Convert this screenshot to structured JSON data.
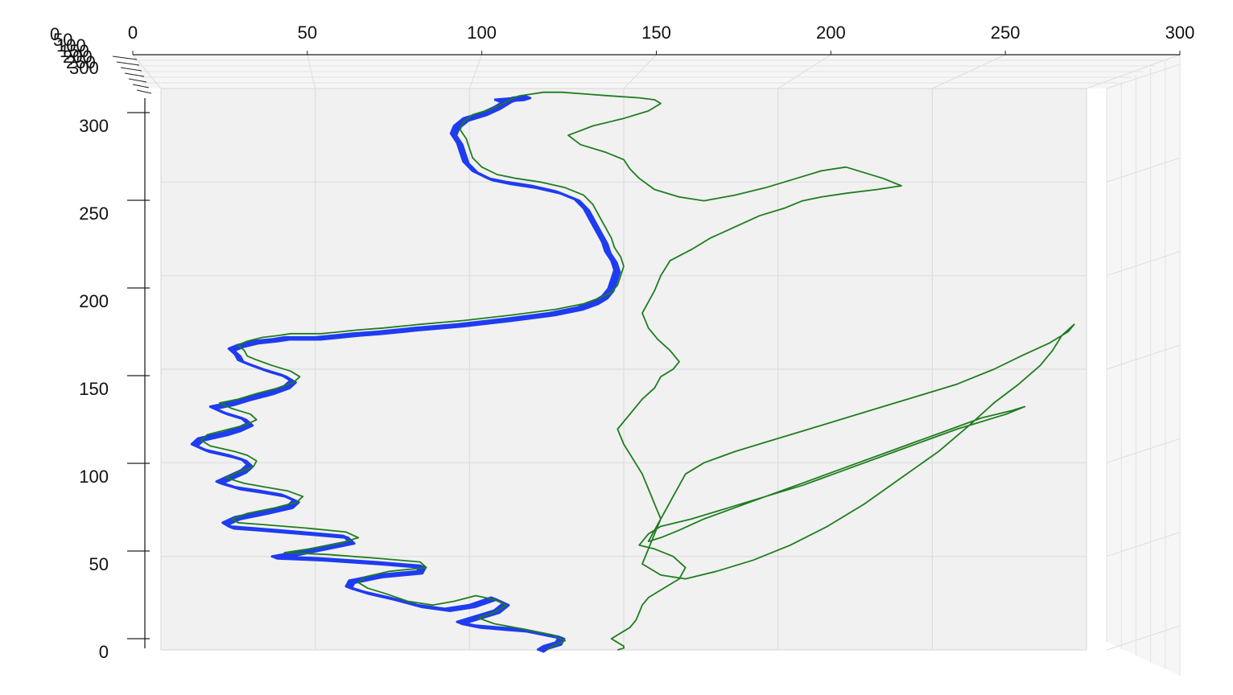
{
  "chart_data": {
    "type": "line",
    "view": "3d-front",
    "title": "",
    "xlabel": "",
    "ylabel": "",
    "zlabel": "",
    "x_ticks": [
      "0",
      "50",
      "100",
      "150",
      "200",
      "250",
      "300"
    ],
    "y_ticks": [
      "0",
      "50",
      "100",
      "150",
      "200",
      "250",
      "300"
    ],
    "z_ticks": [
      "0",
      "50",
      "100",
      "150",
      "200",
      "250",
      "300"
    ],
    "xlim": [
      0,
      300
    ],
    "ylim": [
      0,
      300
    ],
    "grid": true,
    "background": "#f1f1f1",
    "series": [
      {
        "color": "#1f3cf0",
        "x": [
          122,
          124,
          128,
          129,
          117,
          102,
          96,
          102,
          108,
          111,
          107,
          100,
          92,
          83,
          74,
          66,
          60,
          61,
          70,
          83,
          84,
          69,
          51,
          36,
          43,
          52,
          61,
          59,
          45,
          30,
          22,
          20,
          24,
          33,
          41,
          43,
          39,
          32,
          24,
          18,
          22,
          26,
          28,
          26,
          22,
          14,
          10,
          12,
          20,
          24,
          28,
          26,
          20,
          16,
          22,
          28,
          35,
          40,
          42,
          39,
          33,
          28,
          25,
          24,
          22,
          25,
          30,
          36,
          40,
          44,
          50,
          56,
          62,
          70,
          82,
          96,
          112,
          126,
          135,
          140,
          143,
          145,
          146,
          147,
          146,
          144,
          143,
          141,
          139,
          137,
          134,
          128,
          120,
          112,
          106,
          101,
          98,
          97,
          96,
          94,
          95,
          98,
          104,
          108,
          110,
          112,
          114,
          118,
          116,
          108
        ],
        "y": [
          0,
          2,
          4,
          7,
          11,
          13,
          15,
          18,
          21,
          25,
          28,
          24,
          22,
          24,
          28,
          31,
          34,
          37,
          40,
          42,
          45,
          47,
          49,
          50,
          52,
          55,
          58,
          61,
          63,
          65,
          66,
          68,
          71,
          74,
          77,
          80,
          83,
          85,
          87,
          90,
          93,
          96,
          99,
          102,
          104,
          107,
          110,
          113,
          116,
          118,
          121,
          124,
          127,
          130,
          132,
          135,
          138,
          141,
          144,
          147,
          150,
          153,
          155,
          158,
          161,
          163,
          165,
          166,
          167,
          167,
          167,
          168,
          169,
          170,
          172,
          174,
          177,
          180,
          183,
          186,
          189,
          193,
          198,
          203,
          208,
          213,
          218,
          224,
          230,
          236,
          241,
          245,
          248,
          250,
          252,
          256,
          261,
          266,
          271,
          276,
          280,
          284,
          287,
          290,
          292,
          294,
          295,
          296,
          295,
          294
        ]
      },
      {
        "color": "#1e7d1e",
        "x": [
          125,
          128,
          131,
          127,
          118,
          108,
          103,
          108,
          112,
          108,
          102,
          95,
          88,
          80,
          73,
          67,
          64,
          66,
          74,
          86,
          84,
          70,
          54,
          40,
          48,
          58,
          64,
          60,
          48,
          33,
          25,
          23,
          28,
          37,
          44,
          46,
          41,
          34,
          27,
          21,
          25,
          30,
          31,
          28,
          24,
          16,
          13,
          15,
          22,
          27,
          31,
          29,
          23,
          19,
          25,
          31,
          38,
          43,
          45,
          42,
          36,
          31,
          28,
          27,
          25,
          28,
          33,
          38,
          42,
          46,
          52,
          58,
          64,
          72,
          84,
          98,
          114,
          128,
          137,
          142,
          146,
          148,
          149,
          150,
          149,
          147,
          146,
          144,
          142,
          140,
          137,
          131,
          123,
          115,
          109,
          104,
          101,
          100,
          99,
          97,
          98,
          101,
          107,
          111,
          113,
          116,
          120,
          124,
          130,
          138,
          146,
          155,
          160,
          162,
          158,
          150,
          140,
          132,
          136,
          144,
          150,
          152,
          155,
          160,
          168,
          176,
          186,
          196,
          206,
          214,
          222,
          228,
          234,
          240,
          232,
          222,
          214,
          208,
          202,
          194,
          186,
          178,
          172,
          165,
          162,
          160,
          158,
          156,
          158,
          161,
          165,
          168,
          166,
          162,
          160,
          156,
          152,
          148,
          150,
          153,
          156,
          158,
          160,
          162,
          160,
          158,
          156,
          162,
          170,
          180,
          192,
          204,
          216,
          228,
          240,
          252,
          262,
          270,
          278,
          285,
          289,
          292,
          296,
          294,
          288,
          280,
          270,
          258,
          246,
          234,
          222,
          210,
          198,
          186,
          176,
          170,
          168,
          166,
          164,
          162,
          160,
          158,
          162,
          168,
          176,
          186,
          196,
          206,
          216,
          226,
          236,
          246,
          256,
          266,
          276,
          280,
          274,
          266,
          258,
          248,
          238,
          228,
          218,
          208,
          196,
          184,
          172,
          162,
          158,
          156,
          155,
          160,
          166,
          170,
          168,
          162,
          158,
          156,
          155,
          154,
          152,
          150,
          148,
          147,
          146,
          147,
          148,
          149,
          150,
          150,
          148
        ],
        "y": [
          0,
          3,
          5,
          8,
          11,
          14,
          17,
          20,
          24,
          27,
          29,
          26,
          24,
          26,
          30,
          33,
          36,
          39,
          42,
          44,
          47,
          49,
          51,
          52,
          54,
          57,
          60,
          63,
          65,
          67,
          68,
          70,
          73,
          76,
          79,
          82,
          85,
          87,
          89,
          92,
          95,
          98,
          101,
          104,
          106,
          109,
          112,
          115,
          118,
          120,
          123,
          126,
          129,
          132,
          134,
          137,
          140,
          143,
          146,
          149,
          152,
          155,
          157,
          160,
          163,
          165,
          167,
          168,
          169,
          169,
          169,
          170,
          171,
          172,
          174,
          176,
          179,
          182,
          185,
          188,
          191,
          195,
          200,
          205,
          210,
          215,
          220,
          226,
          232,
          238,
          243,
          247,
          250,
          252,
          254,
          258,
          263,
          268,
          273,
          278,
          282,
          286,
          289,
          292,
          294,
          296,
          297,
          298,
          298,
          297,
          296,
          295,
          294,
          292,
          288,
          284,
          280,
          275,
          270,
          266,
          262,
          257,
          252,
          246,
          242,
          240,
          243,
          247,
          252,
          256,
          258,
          255,
          252,
          248,
          246,
          244,
          242,
          240,
          236,
          232,
          226,
          220,
          214,
          208,
          200,
          192,
          186,
          180,
          172,
          166,
          160,
          154,
          150,
          146,
          140,
          134,
          126,
          118,
          110,
          102,
          94,
          86,
          78,
          70,
          62,
          54,
          46,
          40,
          38,
          42,
          48,
          56,
          66,
          78,
          92,
          106,
          120,
          132,
          142,
          152,
          160,
          168,
          174,
          170,
          164,
          158,
          150,
          142,
          136,
          130,
          124,
          118,
          112,
          106,
          100,
          94,
          88,
          82,
          76,
          70,
          64,
          58,
          60,
          64,
          70,
          76,
          82,
          88,
          94,
          100,
          106,
          112,
          118,
          124,
          128,
          130,
          126,
          122,
          118,
          112,
          106,
          100,
          94,
          88,
          82,
          76,
          70,
          66,
          62,
          58,
          56,
          54,
          50,
          44,
          38,
          32,
          28,
          24,
          20,
          16,
          12,
          10,
          8,
          7,
          6,
          5,
          4,
          3,
          2,
          1,
          0
        ]
      }
    ]
  }
}
